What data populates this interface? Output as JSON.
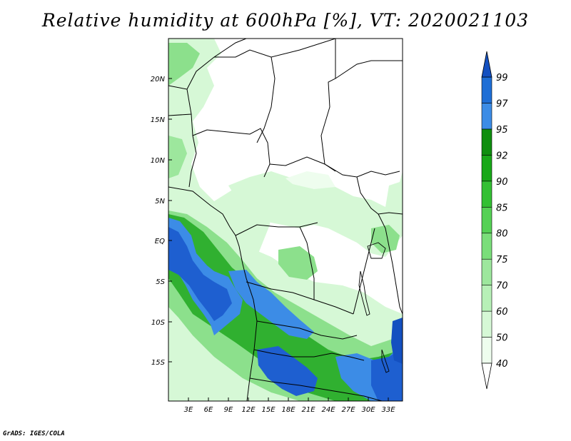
{
  "title": "Relative humidity at 600hPa [%], VT: 2020021103",
  "credit": "GrADS: IGES/COLA",
  "map": {
    "lat_labels": [
      "20N",
      "15N",
      "10N",
      "5N",
      "EQ",
      "5S",
      "10S",
      "15S"
    ],
    "lon_labels": [
      "3E",
      "6E",
      "9E",
      "12E",
      "15E",
      "18E",
      "21E",
      "24E",
      "27E",
      "30E",
      "33E"
    ]
  },
  "colorbar": {
    "levels": [
      "40",
      "50",
      "60",
      "70",
      "75",
      "80",
      "85",
      "90",
      "92",
      "95",
      "97",
      "99"
    ],
    "colors": [
      "#ffffff",
      "#eefdee",
      "#d6f8d6",
      "#b7f0b7",
      "#9de79d",
      "#7ade7a",
      "#55d155",
      "#33c033",
      "#18a818",
      "#0e8e0e",
      "#3c8ce6",
      "#1e6ed6",
      "#1450c0"
    ]
  },
  "field_colors": {
    "green_light": "#d6f8d6",
    "green_mid": "#8ce08c",
    "green_dark": "#30b030",
    "blue_light": "#3c8ce6",
    "blue_dark": "#1e5fd0"
  }
}
